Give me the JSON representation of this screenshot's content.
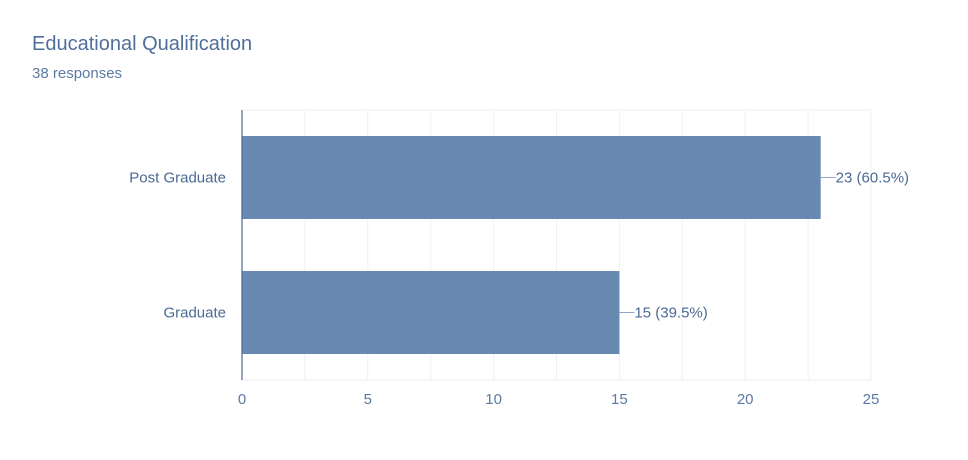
{
  "header": {
    "title": "Educational Qualification",
    "subtitle": "38 responses"
  },
  "chart_data": {
    "type": "bar",
    "orientation": "horizontal",
    "categories": [
      "Post Graduate",
      "Graduate"
    ],
    "values": [
      23,
      15
    ],
    "data_labels": [
      "23 (60.5%)",
      "15 (39.5%)"
    ],
    "title": "Educational Qualification",
    "subtitle": "38 responses",
    "xlim": [
      0,
      25
    ],
    "x_ticks": [
      0,
      5,
      10,
      15,
      20,
      25
    ],
    "grid": true,
    "bar_color": "#6789b2",
    "text_color": "#5b7aa3"
  }
}
